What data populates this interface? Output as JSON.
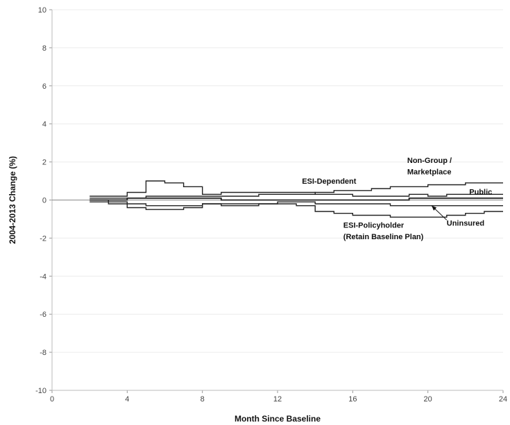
{
  "chart_data": {
    "type": "line",
    "xlabel": "Month Since Baseline",
    "ylabel": "2004-2013 Change (%)",
    "xlim": [
      0,
      24
    ],
    "ylim": [
      -10,
      10
    ],
    "x_ticks": [
      "0",
      "4",
      "8",
      "12",
      "16",
      "20",
      "24"
    ],
    "y_ticks": [
      "-10",
      "-8",
      "-6",
      "-4",
      "-2",
      "0",
      "2",
      "4",
      "6",
      "8",
      "10"
    ],
    "grid": true,
    "legend": "none",
    "series": [
      {
        "name": "ESI-Dependent",
        "x": [
          2,
          3,
          4,
          5,
          6,
          7,
          8,
          9,
          10,
          11,
          12,
          13,
          14,
          15,
          16,
          17,
          18,
          19,
          20,
          21,
          22,
          23,
          24
        ],
        "y": [
          0.2,
          0.2,
          0.4,
          1.0,
          0.9,
          0.7,
          0.3,
          0.4,
          0.4,
          0.4,
          0.4,
          0.4,
          0.3,
          0.3,
          0.2,
          0.2,
          0.2,
          0.3,
          0.2,
          0.3,
          0.3,
          0.3,
          0.3
        ]
      },
      {
        "name": "Non-Group / Marketplace",
        "x": [
          2,
          3,
          4,
          5,
          6,
          7,
          8,
          9,
          10,
          11,
          12,
          13,
          14,
          15,
          16,
          17,
          18,
          19,
          20,
          21,
          22,
          23,
          24
        ],
        "y": [
          0.1,
          0.1,
          0.1,
          0.2,
          0.2,
          0.2,
          0.2,
          0.2,
          0.2,
          0.3,
          0.3,
          0.3,
          0.4,
          0.5,
          0.5,
          0.6,
          0.7,
          0.7,
          0.8,
          0.8,
          0.9,
          0.9,
          0.9
        ]
      },
      {
        "name": "Public",
        "x": [
          2,
          3,
          4,
          5,
          6,
          7,
          8,
          9,
          10,
          11,
          12,
          13,
          14,
          15,
          16,
          17,
          18,
          19,
          20,
          21,
          22,
          23,
          24
        ],
        "y": [
          0.0,
          0.0,
          0.1,
          0.1,
          0.1,
          0.1,
          0.1,
          0.0,
          0.0,
          0.0,
          0.0,
          0.0,
          0.0,
          0.0,
          0.0,
          0.0,
          0.0,
          0.1,
          0.1,
          0.1,
          0.1,
          0.1,
          0.1
        ]
      },
      {
        "name": "ESI-Policyholder (Retain Baseline Plan)",
        "x": [
          2,
          3,
          4,
          5,
          6,
          7,
          8,
          9,
          10,
          11,
          12,
          13,
          14,
          15,
          16,
          17,
          18,
          19,
          20,
          21,
          22,
          23,
          24
        ],
        "y": [
          0.0,
          -0.1,
          -0.2,
          -0.3,
          -0.3,
          -0.3,
          -0.2,
          -0.2,
          -0.2,
          -0.2,
          -0.2,
          -0.3,
          -0.6,
          -0.7,
          -0.8,
          -0.8,
          -0.9,
          -0.9,
          -0.9,
          -0.8,
          -0.7,
          -0.6,
          -0.6
        ]
      },
      {
        "name": "Uninsured",
        "x": [
          2,
          3,
          4,
          5,
          6,
          7,
          8,
          9,
          10,
          11,
          12,
          13,
          14,
          15,
          16,
          17,
          18,
          19,
          20,
          21,
          22,
          23,
          24
        ],
        "y": [
          -0.1,
          -0.2,
          -0.4,
          -0.5,
          -0.5,
          -0.4,
          -0.2,
          -0.3,
          -0.3,
          -0.2,
          -0.1,
          -0.1,
          -0.2,
          -0.2,
          -0.2,
          -0.2,
          -0.3,
          -0.3,
          -0.3,
          -0.3,
          -0.3,
          -0.3,
          -0.3
        ]
      }
    ],
    "annotations": [
      {
        "text": "ESI-Dependent"
      },
      {
        "lines": [
          "Non-Group /",
          "Marketplace"
        ]
      },
      {
        "text": "Public"
      },
      {
        "text": "Uninsured"
      },
      {
        "lines": [
          "ESI-Policyholder",
          "(Retain Baseline Plan)"
        ]
      }
    ]
  }
}
